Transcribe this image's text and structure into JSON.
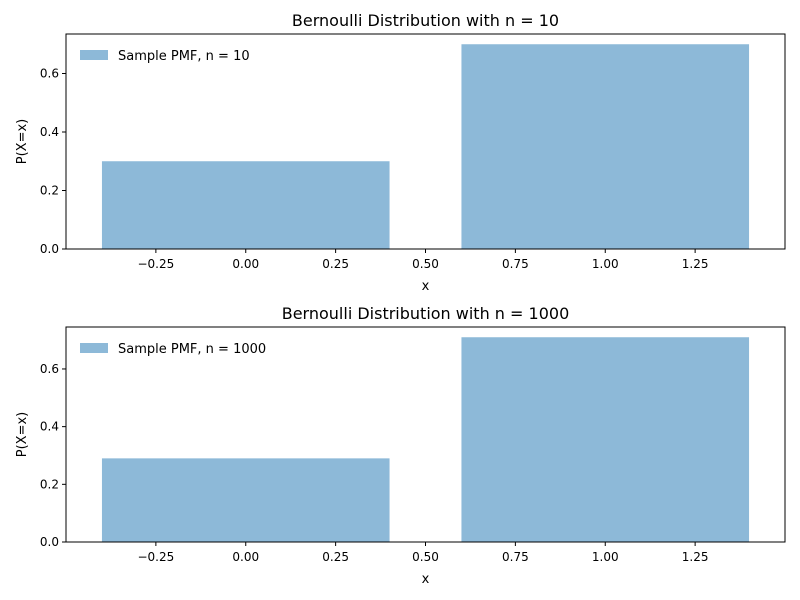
{
  "colors": {
    "bar": "#8db9d8",
    "axis": "#000000",
    "background": "#ffffff"
  },
  "chart_data": [
    {
      "type": "bar",
      "title": "Bernoulli Distribution with n = 10",
      "xlabel": "x",
      "ylabel": "P(X=x)",
      "x": [
        0,
        1
      ],
      "bar_width": 0.8,
      "values": [
        0.3,
        0.7
      ],
      "xlim": [
        -0.5,
        1.5
      ],
      "ylim": [
        0,
        0.735
      ],
      "xticks": [
        -0.25,
        0.0,
        0.25,
        0.5,
        0.75,
        1.0,
        1.25
      ],
      "xtick_labels": [
        "−0.25",
        "0.00",
        "0.25",
        "0.50",
        "0.75",
        "1.00",
        "1.25"
      ],
      "yticks": [
        0.0,
        0.2,
        0.4,
        0.6
      ],
      "ytick_labels": [
        "0.0",
        "0.2",
        "0.4",
        "0.6"
      ],
      "legend": {
        "label": "Sample PMF, n = 10",
        "placement": "top-left",
        "frameless": true
      },
      "grid": false
    },
    {
      "type": "bar",
      "title": "Bernoulli Distribution with n = 1000",
      "xlabel": "x",
      "ylabel": "P(X=x)",
      "x": [
        0,
        1
      ],
      "bar_width": 0.8,
      "values": [
        0.29,
        0.71
      ],
      "xlim": [
        -0.5,
        1.5
      ],
      "ylim": [
        0,
        0.7455
      ],
      "xticks": [
        -0.25,
        0.0,
        0.25,
        0.5,
        0.75,
        1.0,
        1.25
      ],
      "xtick_labels": [
        "−0.25",
        "0.00",
        "0.25",
        "0.50",
        "0.75",
        "1.00",
        "1.25"
      ],
      "yticks": [
        0.0,
        0.2,
        0.4,
        0.6
      ],
      "ytick_labels": [
        "0.0",
        "0.2",
        "0.4",
        "0.6"
      ],
      "legend": {
        "label": "Sample PMF, n = 1000",
        "placement": "top-left",
        "frameless": true
      },
      "grid": false
    }
  ]
}
